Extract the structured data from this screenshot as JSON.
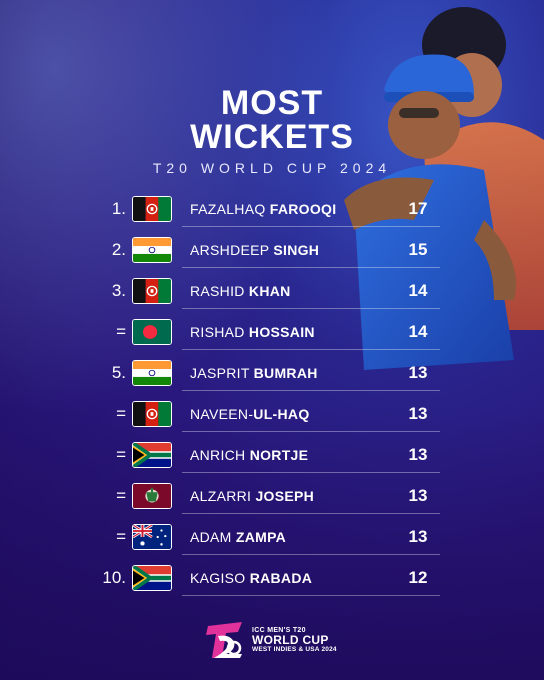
{
  "title": {
    "line1": "MOST",
    "line2": "WICKETS",
    "subtitle": "T20 WORLD CUP 2024"
  },
  "entries": [
    {
      "rank": "1.",
      "flag": "afghanistan-flag-icon",
      "first": "FAZALHAQ",
      "last": "FAROOQI",
      "wickets": "17"
    },
    {
      "rank": "2.",
      "flag": "india-flag-icon",
      "first": "ARSHDEEP",
      "last": "SINGH",
      "wickets": "15"
    },
    {
      "rank": "3.",
      "flag": "afghanistan-flag-icon",
      "first": "RASHID",
      "last": "KHAN",
      "wickets": "14"
    },
    {
      "rank": "=",
      "flag": "bangladesh-flag-icon",
      "first": "RISHAD",
      "last": "HOSSAIN",
      "wickets": "14"
    },
    {
      "rank": "5.",
      "flag": "india-flag-icon",
      "first": "JASPRIT",
      "last": "BUMRAH",
      "wickets": "13"
    },
    {
      "rank": "=",
      "flag": "afghanistan-flag-icon",
      "first": "NAVEEN-",
      "last": "UL-HAQ",
      "wickets": "13"
    },
    {
      "rank": "=",
      "flag": "south-africa-flag-icon",
      "first": "ANRICH",
      "last": "NORTJE",
      "wickets": "13"
    },
    {
      "rank": "=",
      "flag": "west-indies-flag-icon",
      "first": "ALZARRI",
      "last": "JOSEPH",
      "wickets": "13"
    },
    {
      "rank": "=",
      "flag": "australia-flag-icon",
      "first": "ADAM",
      "last": "ZAMPA",
      "wickets": "13"
    },
    {
      "rank": "10.",
      "flag": "south-africa-flag-icon",
      "first": "KAGISO",
      "last": "RABADA",
      "wickets": "12"
    }
  ],
  "logo": {
    "line1": "ICC MEN'S T20",
    "line2": "WORLD CUP",
    "line3": "WEST INDIES & USA 2024",
    "icon": "t20-logo-icon"
  },
  "colors": {
    "background_top": "#3a5fd0",
    "background_bottom": "#1c0c5a",
    "text": "#ffffff"
  }
}
